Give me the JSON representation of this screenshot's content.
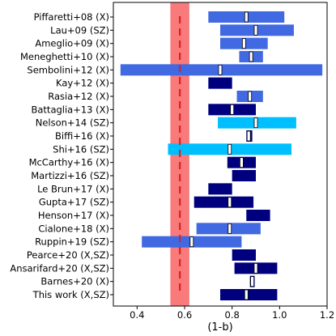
{
  "chart_data": {
    "type": "interval",
    "xlabel": "(1-b)",
    "xlim": [
      0.3,
      1.2
    ],
    "x_ticks": [
      "0.4",
      "0.6",
      "0.8",
      "1.0",
      "1.2"
    ],
    "x_tick_values": [
      0.4,
      0.6,
      0.8,
      1.0,
      1.2
    ],
    "grid": false,
    "band": {
      "x0": 0.54,
      "x1": 0.62,
      "color": "#f87a7a"
    },
    "reference_line": {
      "x": 0.58,
      "style": "dashed",
      "color": "#e02020"
    },
    "colors": {
      "X": "#00007f",
      "SZ": "#00bfff",
      "X,SZ": "#0a0a8a",
      "Other": "#4169e1"
    },
    "rows": [
      {
        "label": "Piffaretti+08 (X)",
        "low": 0.7,
        "high": 1.02,
        "median": 0.86,
        "color": "#4169e1"
      },
      {
        "label": "Lau+09 (SZ)",
        "low": 0.75,
        "high": 1.06,
        "median": 0.9,
        "color": "#4169e1"
      },
      {
        "label": "Ameglio+09 (X)",
        "low": 0.75,
        "high": 0.95,
        "median": 0.85,
        "color": "#4169e1"
      },
      {
        "label": "Meneghetti+10 (X)",
        "low": 0.83,
        "high": 0.93,
        "median": 0.88,
        "color": "#4169e1"
      },
      {
        "label": "Sembolini+12 (X)",
        "low": 0.33,
        "high": 1.18,
        "median": 0.75,
        "color": "#4169e1"
      },
      {
        "label": "Kay+12 (X)",
        "low": 0.7,
        "high": 0.8,
        "median": null,
        "color": "#00007f"
      },
      {
        "label": "Rasia+12 (X)",
        "low": 0.82,
        "high": 0.93,
        "median": 0.875,
        "color": "#4169e1"
      },
      {
        "label": "Battaglia+13 (X)",
        "low": 0.7,
        "high": 0.9,
        "median": 0.8,
        "color": "#00007f"
      },
      {
        "label": "Nelson+14 (SZ)",
        "low": 0.74,
        "high": 1.07,
        "median": 0.9,
        "color": "#00bfff"
      },
      {
        "label": "Biffi+16 (X)",
        "low": 0.86,
        "high": 0.885,
        "median": 0.87,
        "color": "#00007f"
      },
      {
        "label": "Shi+16 (SZ)",
        "low": 0.53,
        "high": 1.05,
        "median": 0.79,
        "color": "#00bfff"
      },
      {
        "label": "McCarthy+16 (X)",
        "low": 0.78,
        "high": 0.9,
        "median": 0.84,
        "color": "#00007f"
      },
      {
        "label": "Martizzi+16 (SZ)",
        "low": 0.8,
        "high": 0.9,
        "median": null,
        "color": "#00007f"
      },
      {
        "label": "Le Brun+17 (X)",
        "low": 0.7,
        "high": 0.8,
        "median": null,
        "color": "#00007f"
      },
      {
        "label": "Gupta+17 (SZ)",
        "low": 0.64,
        "high": 0.89,
        "median": 0.79,
        "color": "#00007f"
      },
      {
        "label": "Henson+17 (X)",
        "low": 0.86,
        "high": 0.96,
        "median": null,
        "color": "#00007f"
      },
      {
        "label": "Cialone+18 (X)",
        "low": 0.65,
        "high": 0.92,
        "median": 0.79,
        "color": "#4169e1"
      },
      {
        "label": "Ruppin+19 (SZ)",
        "low": 0.42,
        "high": 0.84,
        "median": 0.63,
        "color": "#4169e1"
      },
      {
        "label": "Pearce+20 (X,SZ)",
        "low": 0.8,
        "high": 0.9,
        "median": null,
        "color": "#00007f"
      },
      {
        "label": "Ansarifard+20 (X,SZ)",
        "low": 0.81,
        "high": 0.99,
        "median": 0.9,
        "color": "#00007f"
      },
      {
        "label": "Barnes+20 (X)",
        "low": 0.875,
        "high": 0.895,
        "median": 0.885,
        "color": "#00007f"
      },
      {
        "label": "This work (X,SZ)",
        "low": 0.75,
        "high": 0.99,
        "median": 0.86,
        "color": "#00007f"
      }
    ]
  }
}
